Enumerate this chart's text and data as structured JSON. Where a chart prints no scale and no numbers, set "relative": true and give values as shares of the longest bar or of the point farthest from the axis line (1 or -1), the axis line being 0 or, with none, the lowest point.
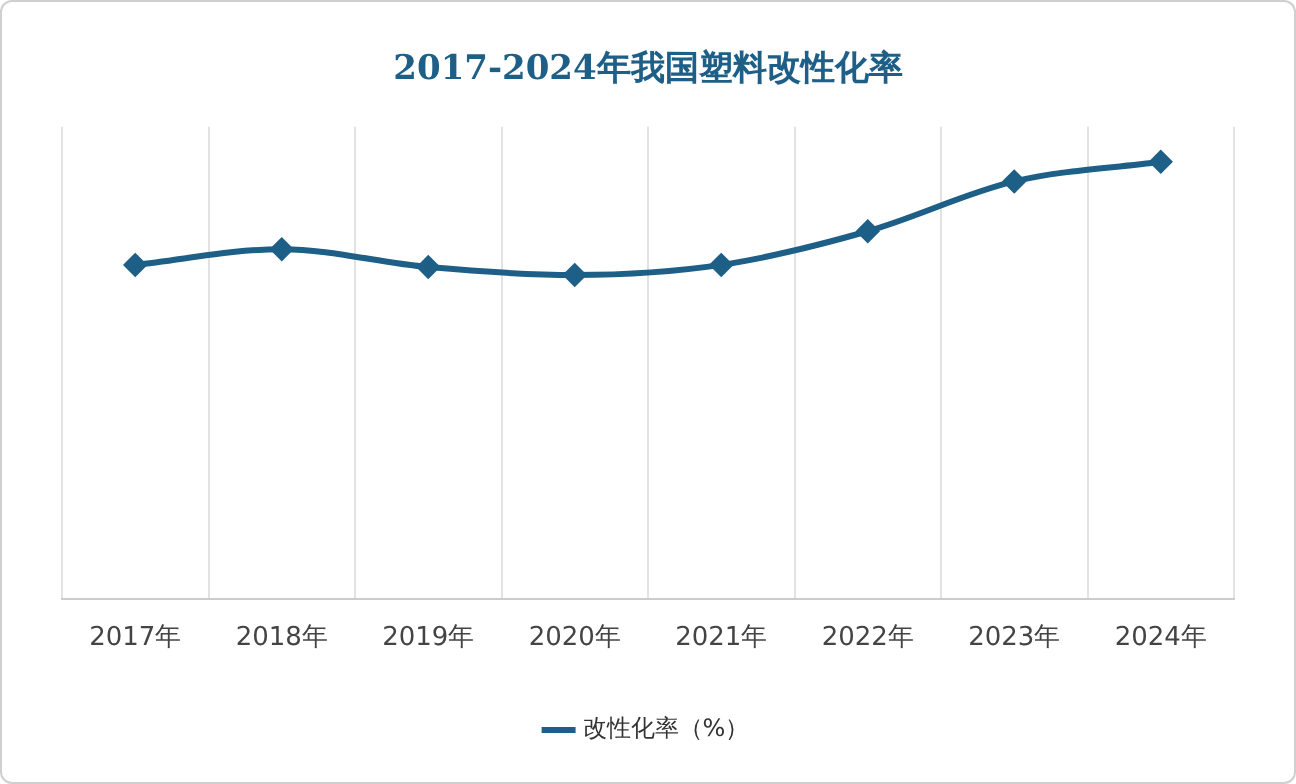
{
  "chart_data": {
    "type": "line",
    "title": "2017-2024年我国塑料改性化率",
    "relative": true,
    "categories": [
      "2017年",
      "2018年",
      "2019年",
      "2020年",
      "2021年",
      "2022年",
      "2023年",
      "2024年"
    ],
    "series": [
      {
        "name": "改性化率（%）",
        "color": "#1d5f86",
        "values": [
          0.764,
          0.8,
          0.759,
          0.741,
          0.764,
          0.841,
          0.955,
          1
        ]
      }
    ],
    "grid": "x",
    "legend": "bottom",
    "marker": "diamond",
    "line_style": "solid"
  }
}
